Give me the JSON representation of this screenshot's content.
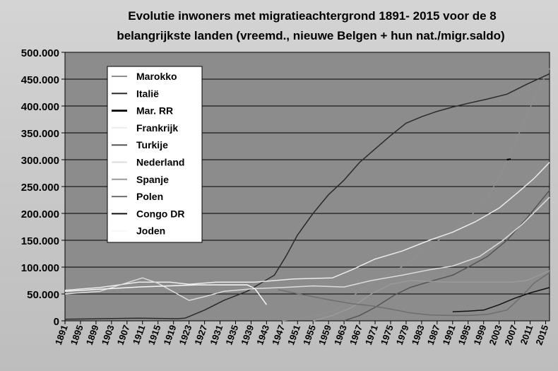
{
  "chart_data": {
    "type": "line",
    "title_line1": "Evolutie inwoners met migratieachtergrond 1891- 2015 voor de 8",
    "title_line2": "belangrijkste landen (vreemd., nieuwe Belgen + hun nat./migr.saldo)",
    "xlabel": "",
    "ylabel": "",
    "xlim": [
      1891,
      2016
    ],
    "ylim": [
      0,
      500000
    ],
    "x_ticks": [
      1891,
      1895,
      1899,
      1903,
      1907,
      1911,
      1915,
      1919,
      1923,
      1927,
      1931,
      1935,
      1939,
      1943,
      1947,
      1951,
      1955,
      1959,
      1963,
      1967,
      1971,
      1975,
      1979,
      1983,
      1987,
      1991,
      1995,
      1999,
      2003,
      2007,
      2011,
      2015
    ],
    "y_ticks": [
      0,
      50000,
      100000,
      150000,
      200000,
      250000,
      300000,
      350000,
      400000,
      450000,
      500000
    ],
    "y_tick_labels": [
      "0",
      "50.000",
      "100.000",
      "150.000",
      "200.000",
      "250.000",
      "300.000",
      "350.000",
      "400.000",
      "450.000",
      "500.000"
    ],
    "grid": "horizontal",
    "legend_position": "top-left",
    "series": [
      {
        "name": "Marokko",
        "color": "#8f8f8f",
        "width": 1.5,
        "points": [
          [
            1947,
            0
          ],
          [
            1955,
            8000
          ],
          [
            1961,
            20000
          ],
          [
            1965,
            45000
          ],
          [
            1970,
            70000
          ],
          [
            1975,
            88000
          ],
          [
            1980,
            110000
          ],
          [
            1985,
            138000
          ],
          [
            1990,
            163000
          ],
          [
            1995,
            190000
          ],
          [
            2000,
            230000
          ],
          [
            2004,
            280000
          ],
          [
            2007,
            330000
          ],
          [
            2010,
            380000
          ],
          [
            2013,
            430000
          ],
          [
            2016,
            470000
          ]
        ]
      },
      {
        "name": "Italië",
        "color": "#2a2a2a",
        "width": 1.5,
        "points": [
          [
            1891,
            3000
          ],
          [
            1900,
            4000
          ],
          [
            1910,
            5000
          ],
          [
            1920,
            4000
          ],
          [
            1922,
            5000
          ],
          [
            1927,
            20000
          ],
          [
            1932,
            38000
          ],
          [
            1938,
            55000
          ],
          [
            1945,
            85000
          ],
          [
            1948,
            120000
          ],
          [
            1951,
            160000
          ],
          [
            1955,
            200000
          ],
          [
            1959,
            235000
          ],
          [
            1963,
            262000
          ],
          [
            1967,
            295000
          ],
          [
            1971,
            320000
          ],
          [
            1975,
            345000
          ],
          [
            1979,
            368000
          ],
          [
            1983,
            380000
          ],
          [
            1987,
            390000
          ],
          [
            1991,
            398000
          ],
          [
            1995,
            405000
          ],
          [
            2000,
            413000
          ],
          [
            2005,
            422000
          ],
          [
            2010,
            440000
          ],
          [
            2016,
            460000
          ]
        ]
      },
      {
        "name": "Mar. RR",
        "color": "#000000",
        "width": 2.2,
        "points": [
          [
            2005,
            300000
          ],
          [
            2006,
            301000
          ]
        ]
      },
      {
        "name": "Frankrijk",
        "color": "#ececec",
        "width": 1.5,
        "points": [
          [
            1891,
            57000
          ],
          [
            1900,
            62000
          ],
          [
            1910,
            72000
          ],
          [
            1918,
            72000
          ],
          [
            1923,
            68000
          ],
          [
            1930,
            72000
          ],
          [
            1940,
            72000
          ],
          [
            1950,
            78000
          ],
          [
            1960,
            80000
          ],
          [
            1965,
            95000
          ],
          [
            1971,
            115000
          ],
          [
            1978,
            130000
          ],
          [
            1985,
            150000
          ],
          [
            1991,
            165000
          ],
          [
            1997,
            185000
          ],
          [
            2003,
            210000
          ],
          [
            2008,
            240000
          ],
          [
            2012,
            265000
          ],
          [
            2016,
            295000
          ]
        ]
      },
      {
        "name": "Turkije",
        "color": "#555555",
        "width": 1.5,
        "points": [
          [
            1963,
            0
          ],
          [
            1967,
            10000
          ],
          [
            1971,
            25000
          ],
          [
            1976,
            48000
          ],
          [
            1980,
            62000
          ],
          [
            1986,
            75000
          ],
          [
            1991,
            85000
          ],
          [
            1995,
            100000
          ],
          [
            2000,
            120000
          ],
          [
            2005,
            150000
          ],
          [
            2010,
            190000
          ],
          [
            2016,
            243000
          ]
        ]
      },
      {
        "name": "Nederland",
        "color": "#dcdcdc",
        "width": 1.5,
        "points": [
          [
            1891,
            50000
          ],
          [
            1900,
            55000
          ],
          [
            1911,
            80000
          ],
          [
            1915,
            70000
          ],
          [
            1920,
            50000
          ],
          [
            1923,
            38000
          ],
          [
            1927,
            45000
          ],
          [
            1932,
            55000
          ],
          [
            1940,
            60000
          ],
          [
            1947,
            62000
          ],
          [
            1955,
            65000
          ],
          [
            1963,
            63000
          ],
          [
            1970,
            75000
          ],
          [
            1978,
            85000
          ],
          [
            1985,
            95000
          ],
          [
            1991,
            102000
          ],
          [
            1998,
            120000
          ],
          [
            2004,
            150000
          ],
          [
            2009,
            180000
          ],
          [
            2016,
            230000
          ]
        ]
      },
      {
        "name": "Spanje",
        "color": "#9a9a9a",
        "width": 1.5,
        "points": [
          [
            1955,
            0
          ],
          [
            1960,
            10000
          ],
          [
            1965,
            25000
          ],
          [
            1970,
            50000
          ],
          [
            1975,
            68000
          ],
          [
            1980,
            75000
          ],
          [
            1990,
            72000
          ],
          [
            2000,
            72000
          ],
          [
            2006,
            72000
          ],
          [
            2010,
            75000
          ],
          [
            2016,
            93000
          ]
        ]
      },
      {
        "name": "Polen",
        "color": "#6e6e6e",
        "width": 1.5,
        "points": [
          [
            1946,
            58000
          ],
          [
            1950,
            52000
          ],
          [
            1955,
            45000
          ],
          [
            1960,
            38000
          ],
          [
            1965,
            32000
          ],
          [
            1970,
            28000
          ],
          [
            1975,
            22000
          ],
          [
            1980,
            15000
          ],
          [
            1985,
            11000
          ],
          [
            1990,
            10000
          ],
          [
            1995,
            10000
          ],
          [
            2000,
            12000
          ],
          [
            2005,
            20000
          ],
          [
            2008,
            40000
          ],
          [
            2012,
            70000
          ],
          [
            2016,
            90000
          ]
        ]
      },
      {
        "name": "Congo DR",
        "color": "#111111",
        "width": 1.5,
        "points": [
          [
            1991,
            17000
          ],
          [
            1995,
            18000
          ],
          [
            1999,
            20000
          ],
          [
            2003,
            30000
          ],
          [
            2007,
            42000
          ],
          [
            2011,
            52000
          ],
          [
            2016,
            62000
          ]
        ]
      },
      {
        "name": "Joden",
        "color": "#f7f7f7",
        "width": 1.5,
        "points": [
          [
            1891,
            55000
          ],
          [
            1910,
            63000
          ],
          [
            1925,
            67000
          ],
          [
            1938,
            67000
          ],
          [
            1940,
            60000
          ],
          [
            1941,
            50000
          ],
          [
            1942,
            40000
          ],
          [
            1943,
            30000
          ]
        ]
      }
    ]
  }
}
